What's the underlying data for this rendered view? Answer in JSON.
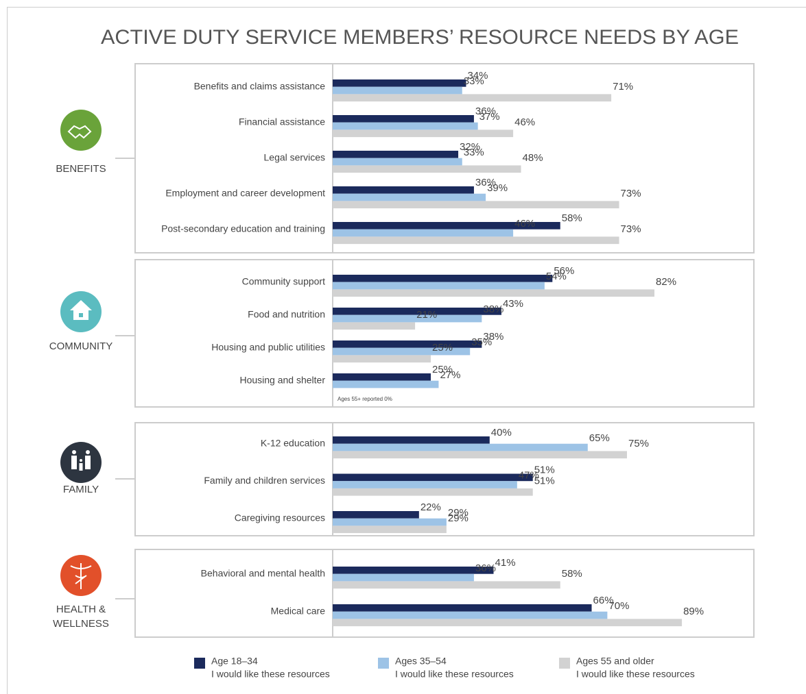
{
  "chart_data": {
    "type": "bar",
    "orientation": "horizontal",
    "title": "ACTIVE DUTY SERVICE MEMBERS’ RESOURCE NEEDS BY AGE",
    "xlim": [
      0,
      100
    ],
    "series": [
      {
        "name": "Age 18–34",
        "note": "I would like these resources",
        "color": "#1b2a5c"
      },
      {
        "name": "Ages 35–54",
        "note": "I would like these resources",
        "color": "#9dc3e6"
      },
      {
        "name": "Ages 55 and older",
        "note": "I would like these resources",
        "color": "#d2d2d2"
      }
    ],
    "panels": [
      {
        "label_lines": [
          "BENEFITS"
        ],
        "color": "#6aa33a",
        "categories": [
          "Benefits and claims assistance",
          "Financial assistance",
          "Legal services",
          "Employment and career development",
          "Post-secondary education and training"
        ],
        "values": [
          [
            34,
            36,
            32,
            36,
            58
          ],
          [
            33,
            37,
            33,
            39,
            46
          ],
          [
            71,
            46,
            48,
            73,
            73
          ]
        ],
        "value_labels": [
          [
            "34%",
            "36%",
            "32%",
            "36%",
            "58%"
          ],
          [
            "33%",
            "37%",
            "33%",
            "39%",
            "46%"
          ],
          [
            "71%",
            "46%",
            "48%",
            "73%",
            "73%"
          ]
        ]
      },
      {
        "label_lines": [
          "COMMUNITY"
        ],
        "color": "#5bbcc0",
        "categories": [
          "Community support",
          "Food and nutrition",
          "Housing and public utilities",
          "Housing and shelter"
        ],
        "values": [
          [
            56,
            43,
            38,
            25
          ],
          [
            54,
            38,
            35,
            27
          ],
          [
            82,
            21,
            25,
            0
          ]
        ],
        "value_labels": [
          [
            "56%",
            "43%",
            "38%",
            "25%"
          ],
          [
            "54%",
            "38%",
            "35%",
            "27%"
          ],
          [
            "82%",
            "21%",
            "25%",
            null
          ]
        ],
        "annotation": "Ages 55+ reported 0%"
      },
      {
        "label_lines": [
          "FAMILY"
        ],
        "color": "#2d3540",
        "categories": [
          "K-12 education",
          "Family and children services",
          "Caregiving resources"
        ],
        "values": [
          [
            40,
            51,
            22
          ],
          [
            65,
            47,
            29
          ],
          [
            75,
            51,
            29
          ]
        ],
        "value_labels": [
          [
            "40%",
            "51%",
            "22%"
          ],
          [
            "65%",
            "47%",
            "29%"
          ],
          [
            "75%",
            "51%",
            "29%"
          ]
        ]
      },
      {
        "label_lines": [
          "HEALTH &",
          "WELLNESS"
        ],
        "color": "#e2502a",
        "categories": [
          "Behavioral and mental health",
          "Medical care"
        ],
        "values": [
          [
            41,
            66
          ],
          [
            36,
            70
          ],
          [
            58,
            89
          ]
        ],
        "value_labels": [
          [
            "41%",
            "66%"
          ],
          [
            "36%",
            "70%"
          ],
          [
            "58%",
            "89%"
          ]
        ]
      }
    ]
  }
}
